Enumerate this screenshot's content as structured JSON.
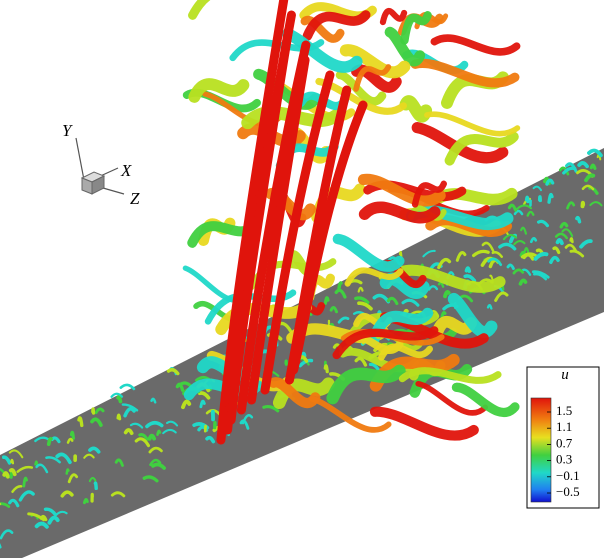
{
  "axes_triad": {
    "labels": [
      "Y",
      "X",
      "Z"
    ]
  },
  "colorbar": {
    "title": "u",
    "ticks": [
      1.5,
      1.1,
      0.7,
      0.3,
      {
        "value": -0.1,
        "label": "−0.1"
      },
      {
        "value": -0.5,
        "label": "−0.5"
      }
    ]
  }
}
